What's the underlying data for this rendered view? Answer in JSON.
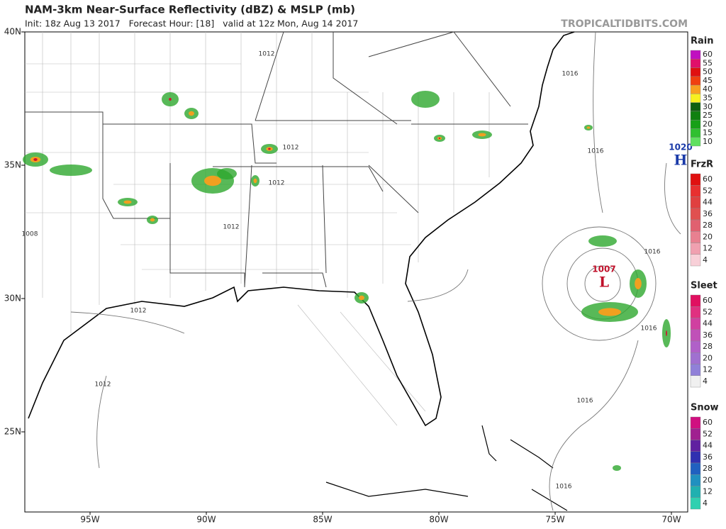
{
  "header": {
    "title": "NAM-3km Near-Surface Reflectivity (dBZ) & MSLP (mb)",
    "subtitle": "Init: 18z Aug 13 2017   Forecast Hour: [18]   valid at 12z Mon, Aug 14 2017",
    "credit": "TROPICALTIDBITS.COM"
  },
  "map": {
    "lat_labels": [
      "40N",
      "35N",
      "30N",
      "25N"
    ],
    "lon_labels": [
      "95W",
      "90W",
      "85W",
      "80W",
      "75W",
      "70W"
    ],
    "isobar_labels": [
      "1012",
      "1012",
      "1012",
      "1012",
      "1012",
      "1012",
      "1016",
      "1016",
      "1016",
      "1016",
      "1016",
      "1016",
      "1008"
    ],
    "pressure_centers": [
      {
        "value": "1020",
        "symbol": "H",
        "color": "#1a3aa8"
      },
      {
        "value": "1007",
        "symbol": "L",
        "color": "#c0102a"
      }
    ]
  },
  "legends": [
    {
      "title": "Rain",
      "ticks": [
        60,
        55,
        50,
        45,
        40,
        35,
        30,
        25,
        20,
        15,
        10
      ],
      "colors": [
        "#c010c0",
        "#e0106a",
        "#e01010",
        "#f04010",
        "#f8a020",
        "#f8f020",
        "#106010",
        "#108010",
        "#18a018",
        "#30c030",
        "#60e060"
      ]
    },
    {
      "title": "FrzR",
      "ticks": [
        60,
        52,
        44,
        36,
        28,
        20,
        12,
        4
      ],
      "colors": [
        "#e01010",
        "#e83030",
        "#e04040",
        "#e05050",
        "#e06070",
        "#e88090",
        "#f0a0b0",
        "#f8d0d8"
      ]
    },
    {
      "title": "Sleet",
      "ticks": [
        60,
        52,
        44,
        36,
        28,
        20,
        12,
        4
      ],
      "colors": [
        "#e01060",
        "#e03080",
        "#d040a0",
        "#c050b8",
        "#b060c8",
        "#a070d0",
        "#9080d8",
        "#f0f0f0"
      ]
    },
    {
      "title": "Snow",
      "ticks": [
        60,
        52,
        44,
        36,
        28,
        20,
        12,
        4
      ],
      "colors": [
        "#d01080",
        "#a02090",
        "#6020a0",
        "#3030b0",
        "#2060c0",
        "#2090c0",
        "#20b0b0",
        "#30d0b0"
      ]
    }
  ]
}
